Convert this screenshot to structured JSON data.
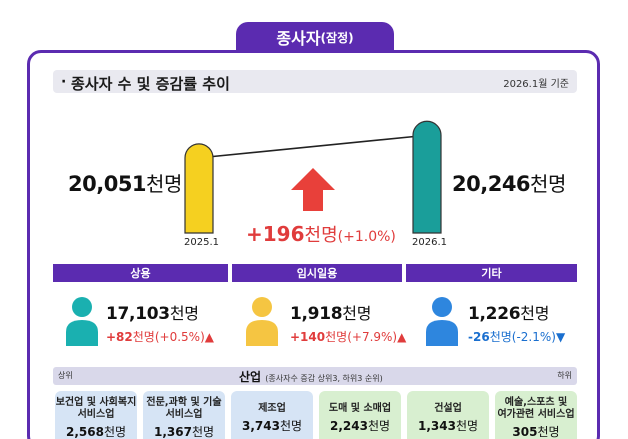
{
  "page": {
    "title": "종사자",
    "title_sub": "(잠정)",
    "section_label": "종사자 수 및 증감률 추이",
    "as_of": "2026.1월 기준"
  },
  "chart_data": {
    "type": "bar",
    "categories": [
      "2025.1",
      "2026.1"
    ],
    "values": [
      20051,
      20246
    ],
    "value_labels": [
      "20,051",
      "20,246"
    ],
    "unit": "천명",
    "change": {
      "value": "+196",
      "unit": "천명",
      "pct": "(+1.0%)"
    },
    "colors": [
      "#f5d020",
      "#1a9e9a"
    ]
  },
  "categories": [
    {
      "name": "상용",
      "value": "17,103",
      "unit": "천명",
      "change": "+82",
      "change_unit": "천명",
      "pct": "(+0.5%)",
      "direction": "up",
      "color": "#1ab0b0"
    },
    {
      "name": "임시일용",
      "value": "1,918",
      "unit": "천명",
      "change": "+140",
      "change_unit": "천명",
      "pct": "(+7.9%)",
      "direction": "up",
      "color": "#f5c542"
    },
    {
      "name": "기타",
      "value": "1,226",
      "unit": "천명",
      "change": "-26",
      "change_unit": "천명",
      "pct": "(-2.1%)",
      "direction": "down",
      "color": "#2e86de"
    }
  ],
  "industry": {
    "title": "산업",
    "note": "(종사자수 증감 상위3, 하위3 순위)",
    "left_label": "상위",
    "right_label": "하위",
    "items": [
      {
        "name1": "보건업 및 사회복지",
        "name2": "서비스업",
        "value": "2,568",
        "unit": "천명",
        "bg": "#d6e4f5"
      },
      {
        "name1": "전문,과학 및 기술",
        "name2": "서비스업",
        "value": "1,367",
        "unit": "천명",
        "bg": "#d6e4f5"
      },
      {
        "name1": "제조업",
        "name2": "",
        "value": "3,743",
        "unit": "천명",
        "bg": "#d6e4f5"
      },
      {
        "name1": "도매 및 소매업",
        "name2": "",
        "value": "2,243",
        "unit": "천명",
        "bg": "#d8efd0"
      },
      {
        "name1": "건설업",
        "name2": "",
        "value": "1,343",
        "unit": "천명",
        "bg": "#d8efd0"
      },
      {
        "name1": "예술,스포츠 및",
        "name2": "여가관련 서비스업",
        "value": "305",
        "unit": "천명",
        "bg": "#d8efd0"
      }
    ]
  }
}
